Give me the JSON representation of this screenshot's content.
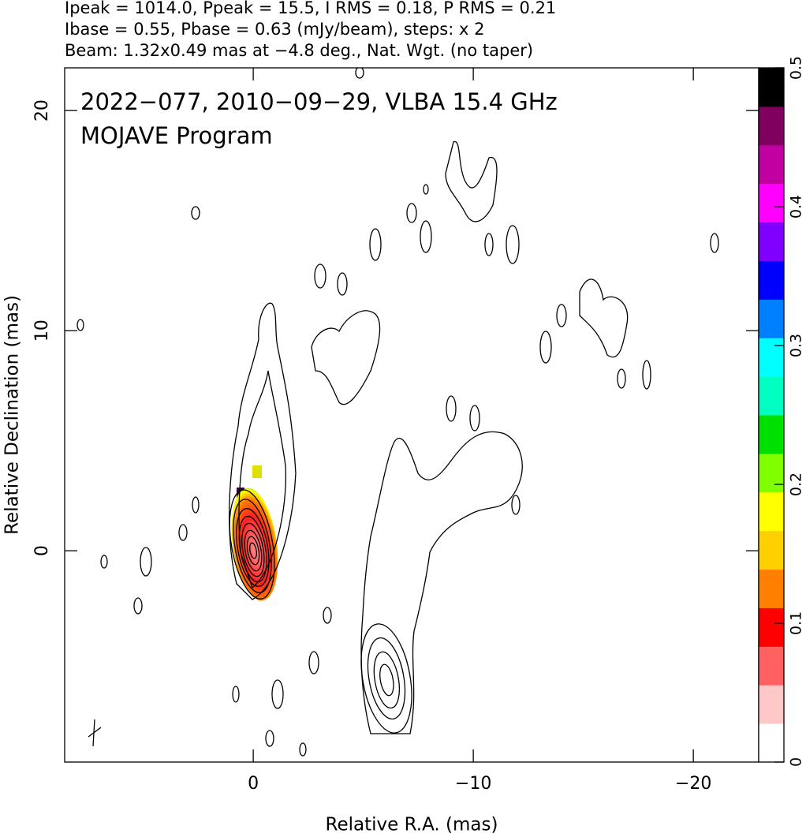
{
  "chart_data": {
    "type": "contour",
    "header": [
      "Ipeak = 1014.0, Ppeak = 15.5, I RMS = 0.18, P RMS = 0.21",
      "Ibase = 0.55, Pbase = 0.63 (mJy/beam), steps: x 2",
      "Beam: 1.32x0.49 mas at −4.8 deg., Nat. Wgt. (no taper)"
    ],
    "annotations": [
      "2022−077, 2010−09−29, VLBA 15.4 GHz",
      "MOJAVE Program"
    ],
    "xlabel": "Relative R.A. (mas)",
    "ylabel": "Relative Declination (mas)",
    "xlim": [
      8.57,
      -22.97
    ],
    "ylim": [
      -9.6,
      21.94
    ],
    "xticks": [
      0,
      {
        "value": -10,
        "label": "−10"
      },
      {
        "value": -20,
        "label": "−20"
      }
    ],
    "yticks": [
      0,
      10,
      20
    ],
    "colorbar": {
      "lim": [
        0,
        0.5
      ],
      "ticks": [
        0,
        0.1,
        0.2,
        0.3,
        0.4,
        0.5
      ],
      "colors": [
        "#ffffff",
        "#ffc8c8",
        "#ff6060",
        "#ff0000",
        "#ff8000",
        "#ffd000",
        "#ffff00",
        "#80ff00",
        "#00e000",
        "#00ffc0",
        "#00ffff",
        "#0080ff",
        "#0000ff",
        "#8000ff",
        "#ff00ff",
        "#c000a0",
        "#800060",
        "#000000"
      ]
    }
  }
}
